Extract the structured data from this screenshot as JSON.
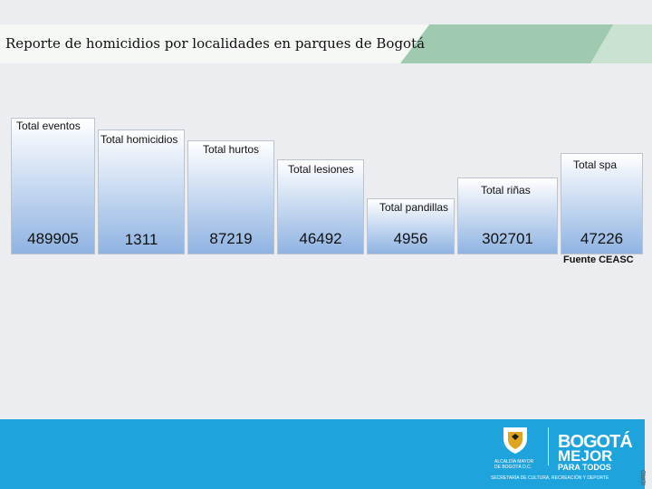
{
  "header": {
    "title": "Reporte de homicidios por localidades en parques de Bogotá",
    "accent_color": "#9fcab0"
  },
  "columns": [
    {
      "label": "Total eventos",
      "value": "489905"
    },
    {
      "label": "Total homicidios",
      "value": "1311"
    },
    {
      "label": "Total hurtos",
      "value": "87219"
    },
    {
      "label": "Total lesiones",
      "value": "46492"
    },
    {
      "label": "Total pandillas",
      "value": "4956"
    },
    {
      "label": "Total riñas",
      "value": "302701"
    },
    {
      "label": "Total spa",
      "value": "47226"
    }
  ],
  "source": "Fuente CEASC",
  "footer": {
    "color": "#1ea3dd",
    "logo_text": {
      "alcaldia_1": "ALCALDÍA MAYOR",
      "alcaldia_2": "DE BOGOTÁ D.C.",
      "bogota": "BOGOTÁ",
      "mejor": "MEJOR",
      "para_todos": "PARA TODOS",
      "secretaria": "SECRETARÍA DE CULTURA, RECREACIÓN Y DEPORTE"
    },
    "side_text": "IDRD"
  }
}
